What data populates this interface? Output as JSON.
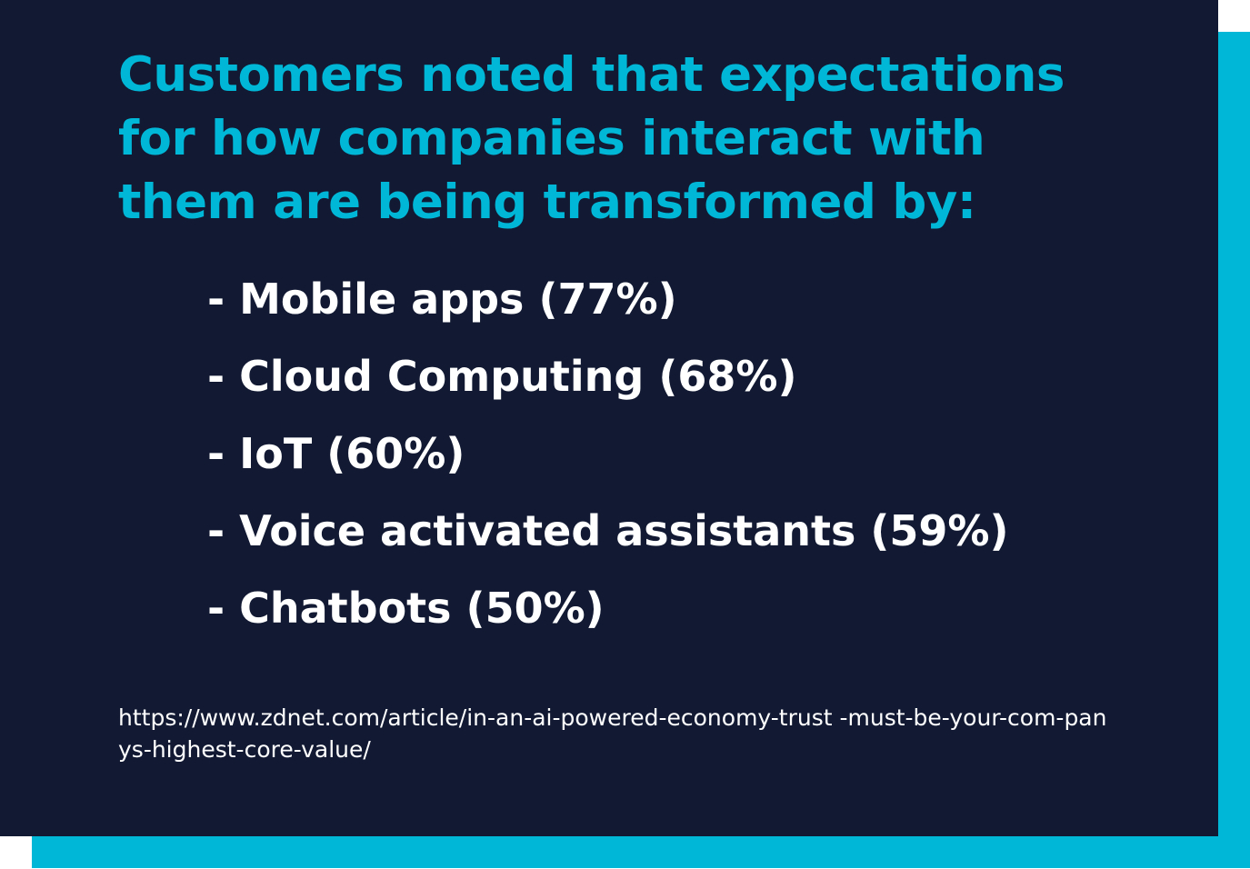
{
  "headline": "Customers noted that expectations for how companies interact with them are being transformed by:",
  "items": [
    "- Mobile apps (77%)",
    "- Cloud Computing (68%)",
    "- IoT (60%)",
    "- Voice activated assistants (59%)",
    "- Chatbots (50%)"
  ],
  "source": "https://www.zdnet.com/article/in-an-ai-powered-economy-trust -must-be-your-com-panys-highest-core-value/",
  "colors": {
    "background": "#121a33",
    "accent": "#00b7d8",
    "text": "#ffffff"
  }
}
